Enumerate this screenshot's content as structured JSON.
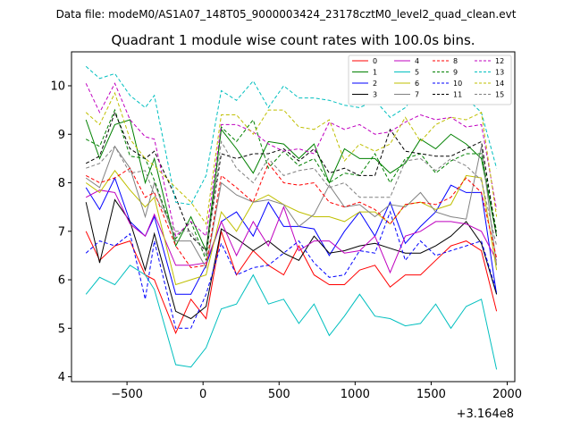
{
  "chart_data": {
    "type": "line",
    "suptitle": "Data file: modeM0/AS1A07_148T05_9000003424_23178cztM0_level2_quad_clean.evt",
    "title": "Quadrant 1 module wise count rates with 100.0s bins.",
    "xlabel": "",
    "ylabel": "",
    "x_offset_label": "+3.164e8",
    "xlim": [
      -865,
      2050
    ],
    "ylim": [
      3.9,
      10.7
    ],
    "xticks": [
      -500,
      0,
      500,
      1000,
      1500,
      2000
    ],
    "xtick_labels": [
      "−500",
      "0",
      "500",
      "1000",
      "1500",
      "2000"
    ],
    "yticks": [
      4,
      5,
      6,
      7,
      8,
      9,
      10
    ],
    "ytick_labels": [
      "4",
      "5",
      "6",
      "7",
      "8",
      "9",
      "10"
    ],
    "legend_position": "top-right",
    "x": [
      -770,
      -680,
      -580,
      -480,
      -380,
      -320,
      -180,
      -80,
      20,
      120,
      220,
      330,
      430,
      530,
      630,
      730,
      830,
      930,
      1030,
      1130,
      1230,
      1330,
      1430,
      1530,
      1630,
      1730,
      1830,
      1930
    ],
    "series": [
      {
        "name": "0",
        "color": "#ff0000",
        "dash": "solid",
        "values": [
          7.0,
          6.4,
          6.7,
          6.8,
          6.1,
          6.0,
          4.9,
          5.6,
          5.2,
          7.0,
          6.1,
          6.6,
          6.3,
          6.1,
          6.7,
          6.1,
          5.9,
          5.9,
          6.2,
          6.3,
          5.85,
          6.1,
          6.1,
          6.4,
          6.7,
          6.8,
          6.6,
          5.35
        ]
      },
      {
        "name": "1",
        "color": "#008000",
        "dash": "solid",
        "values": [
          9.3,
          8.5,
          9.2,
          9.3,
          8.0,
          8.5,
          6.7,
          7.3,
          6.6,
          9.1,
          8.7,
          8.2,
          8.85,
          8.8,
          8.5,
          8.8,
          8.0,
          8.7,
          8.5,
          8.5,
          8.2,
          8.4,
          8.9,
          8.7,
          9.0,
          8.8,
          8.5,
          6.9
        ]
      },
      {
        "name": "2",
        "color": "#0000ff",
        "dash": "solid",
        "values": [
          7.9,
          7.45,
          8.1,
          7.2,
          6.9,
          7.3,
          5.7,
          5.7,
          6.3,
          7.2,
          7.4,
          6.9,
          7.6,
          7.1,
          7.1,
          7.05,
          6.5,
          7.0,
          7.4,
          6.9,
          7.6,
          6.75,
          7.1,
          7.4,
          7.95,
          7.8,
          7.8,
          5.7
        ]
      },
      {
        "name": "3",
        "color": "#000000",
        "dash": "solid",
        "values": [
          7.6,
          6.35,
          7.65,
          7.2,
          6.2,
          6.95,
          5.35,
          5.2,
          5.45,
          7.05,
          6.85,
          6.6,
          6.8,
          6.55,
          6.4,
          6.9,
          6.55,
          6.6,
          6.7,
          6.75,
          6.65,
          6.55,
          6.55,
          6.7,
          6.9,
          7.2,
          6.75,
          5.7
        ]
      },
      {
        "name": "4",
        "color": "#bf00bf",
        "dash": "solid",
        "values": [
          7.7,
          7.85,
          7.8,
          7.15,
          6.9,
          7.35,
          6.3,
          6.3,
          6.35,
          7.2,
          6.5,
          7.2,
          6.7,
          7.5,
          6.6,
          6.8,
          6.8,
          6.55,
          6.6,
          6.9,
          6.15,
          6.9,
          7.0,
          7.2,
          7.2,
          7.15,
          7.0,
          6.4
        ]
      },
      {
        "name": "5",
        "color": "#00bfbf",
        "dash": "solid",
        "values": [
          5.7,
          6.05,
          5.9,
          6.3,
          6.1,
          5.8,
          4.25,
          4.2,
          4.6,
          5.4,
          5.5,
          6.1,
          5.5,
          5.6,
          5.1,
          5.5,
          4.85,
          5.25,
          5.7,
          5.25,
          5.2,
          5.05,
          5.1,
          5.5,
          5.0,
          5.45,
          5.6,
          4.15
        ]
      },
      {
        "name": "6",
        "color": "#bfbf00",
        "dash": "solid",
        "values": [
          8.0,
          7.8,
          8.25,
          7.85,
          7.5,
          7.7,
          5.9,
          6.0,
          6.1,
          7.4,
          7.0,
          7.6,
          7.75,
          7.55,
          7.4,
          7.3,
          7.3,
          7.2,
          7.4,
          7.4,
          7.15,
          7.55,
          7.6,
          7.45,
          7.55,
          8.15,
          8.1,
          6.2
        ]
      },
      {
        "name": "7",
        "color": "#808080",
        "dash": "solid",
        "values": [
          8.1,
          7.9,
          8.75,
          8.3,
          7.3,
          8.0,
          6.8,
          6.8,
          6.25,
          8.0,
          7.75,
          7.6,
          7.65,
          7.55,
          7.1,
          7.35,
          7.95,
          7.5,
          7.55,
          7.3,
          7.55,
          7.5,
          7.8,
          7.4,
          7.3,
          7.25,
          8.75,
          6.3
        ]
      },
      {
        "name": "8",
        "color": "#ff0000",
        "dash": "dashed",
        "values": [
          8.15,
          8.0,
          8.1,
          8.3,
          7.7,
          7.8,
          6.7,
          6.25,
          6.3,
          8.15,
          7.9,
          7.6,
          8.4,
          8.0,
          7.95,
          8.0,
          7.6,
          7.5,
          7.6,
          7.45,
          7.15,
          7.55,
          7.6,
          7.55,
          7.7,
          8.1,
          7.8,
          6.45
        ]
      },
      {
        "name": "9",
        "color": "#008000",
        "dash": "dashed",
        "values": [
          8.9,
          8.75,
          9.5,
          8.55,
          8.5,
          8.05,
          6.85,
          7.2,
          6.4,
          9.15,
          8.85,
          9.3,
          8.3,
          8.65,
          8.35,
          8.5,
          8.0,
          8.2,
          8.15,
          8.6,
          8.0,
          8.5,
          8.6,
          8.2,
          8.45,
          8.6,
          8.6,
          7.0
        ]
      },
      {
        "name": "10",
        "color": "#0000ff",
        "dash": "dashed",
        "values": [
          6.55,
          6.8,
          6.7,
          6.95,
          5.6,
          6.8,
          5.0,
          5.0,
          5.7,
          6.75,
          6.1,
          6.25,
          6.3,
          6.55,
          6.8,
          6.35,
          6.05,
          6.1,
          6.6,
          6.55,
          7.4,
          6.4,
          6.8,
          6.5,
          6.6,
          6.7,
          6.8,
          5.75
        ]
      },
      {
        "name": "11",
        "color": "#000000",
        "dash": "dashed",
        "values": [
          8.4,
          8.55,
          9.45,
          8.7,
          8.5,
          8.65,
          7.7,
          6.9,
          6.6,
          8.6,
          8.5,
          8.6,
          8.6,
          8.7,
          8.45,
          8.7,
          8.2,
          8.3,
          8.15,
          8.15,
          9.1,
          8.65,
          8.6,
          8.55,
          8.55,
          8.7,
          8.85,
          6.9
        ]
      },
      {
        "name": "12",
        "color": "#bf00bf",
        "dash": "dashed",
        "values": [
          10.05,
          9.45,
          10.05,
          9.3,
          8.95,
          8.9,
          6.9,
          7.2,
          6.9,
          9.2,
          9.2,
          9.05,
          8.8,
          8.65,
          8.7,
          8.6,
          9.25,
          9.1,
          9.2,
          9.0,
          9.05,
          9.25,
          9.4,
          9.3,
          9.35,
          9.15,
          9.2,
          7.45
        ]
      },
      {
        "name": "13",
        "color": "#00bfbf",
        "dash": "dashed",
        "values": [
          10.4,
          10.15,
          10.25,
          9.8,
          9.55,
          9.8,
          7.6,
          7.55,
          8.15,
          9.9,
          9.7,
          10.1,
          9.55,
          10.0,
          9.75,
          9.75,
          9.7,
          9.6,
          9.55,
          9.7,
          9.35,
          9.55,
          9.95,
          9.85,
          9.95,
          9.75,
          9.45,
          8.3
        ]
      },
      {
        "name": "14",
        "color": "#bfbf00",
        "dash": "dashed",
        "values": [
          9.45,
          9.2,
          9.85,
          8.9,
          8.5,
          8.35,
          7.9,
          7.6,
          7.15,
          9.4,
          9.4,
          9.0,
          9.5,
          9.5,
          9.15,
          9.1,
          9.3,
          8.45,
          8.8,
          8.65,
          8.8,
          9.35,
          8.85,
          9.2,
          9.35,
          9.3,
          9.45,
          7.3
        ]
      },
      {
        "name": "15",
        "color": "#808080",
        "dash": "dashed",
        "values": [
          8.3,
          8.4,
          8.75,
          8.2,
          8.25,
          7.75,
          7.0,
          7.0,
          6.5,
          8.85,
          8.3,
          8.0,
          8.5,
          8.15,
          8.25,
          8.3,
          7.9,
          8.0,
          7.7,
          7.7,
          7.7,
          8.45,
          8.5,
          8.25,
          8.5,
          8.35,
          8.05,
          6.7
        ]
      }
    ]
  }
}
